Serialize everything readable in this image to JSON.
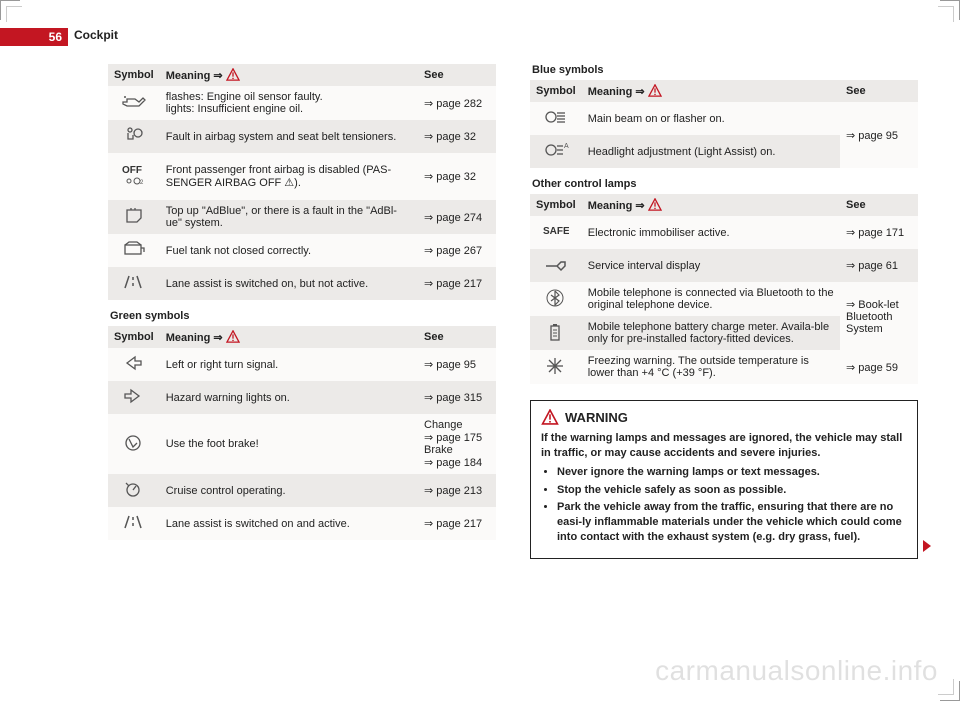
{
  "page_number": "56",
  "section": "Cockpit",
  "watermark": "carmanualsonline.info",
  "col_header_symbol": "Symbol",
  "col_header_meaning": "Meaning ⇒",
  "col_header_see": "See",
  "warn_tri_color": "#c31622",
  "tables": {
    "top_left": [
      {
        "icon": "oil-can",
        "text": "flashes: Engine oil sensor faulty.\nlights: Insufficient engine oil.",
        "see": "⇒ page 282",
        "shade": "light"
      },
      {
        "icon": "airbag-person",
        "text": "Fault in airbag system and seat belt tensioners.",
        "see": "⇒ page 32",
        "shade": "dark"
      },
      {
        "icon": "off-airbag",
        "text": "Front passenger front airbag is disabled (PAS-SENGER AIRBAG OFF ⚠).",
        "see": "⇒ page 32",
        "shade": "light"
      },
      {
        "icon": "adblue",
        "text": "Top up \"AdBlue\", or there is a fault in the \"AdBl-ue\" system.",
        "see": "⇒ page 274",
        "shade": "dark"
      },
      {
        "icon": "fuel-cap",
        "text": "Fuel tank not closed correctly.",
        "see": "⇒ page 267",
        "shade": "light"
      },
      {
        "icon": "lane-lines",
        "text": "Lane assist is switched on, but not active.",
        "see": "⇒ page 217",
        "shade": "dark"
      }
    ],
    "green_title": "Green symbols",
    "green": [
      {
        "icon": "arrow-left",
        "text": "Left or right turn signal.",
        "see": "⇒ page 95",
        "shade": "light"
      },
      {
        "icon": "arrow-right",
        "text": "Hazard warning lights on.",
        "see": "⇒ page 315",
        "shade": "dark"
      },
      {
        "icon": "foot-brake",
        "text": "Use the foot brake!",
        "see": "Change\n⇒ page 175\nBrake\n⇒ page 184",
        "shade": "light"
      },
      {
        "icon": "cruise",
        "text": "Cruise control operating.",
        "see": "⇒ page 213",
        "shade": "dark"
      },
      {
        "icon": "lane-lines",
        "text": "Lane assist is switched on and active.",
        "see": "⇒ page 217",
        "shade": "light"
      }
    ],
    "blue_title": "Blue symbols",
    "blue": [
      {
        "icon": "main-beam",
        "text": "Main beam on or flasher on.",
        "see_rowspan": "⇒ page 95",
        "shade": "light"
      },
      {
        "icon": "light-assist",
        "text": "Headlight adjustment (Light Assist) on.",
        "shade": "dark"
      }
    ],
    "other_title": "Other control lamps",
    "other": [
      {
        "icon": "safe-text",
        "text": "Electronic immobiliser active.",
        "see": "⇒ page 171",
        "shade": "light"
      },
      {
        "icon": "wrench",
        "text": "Service interval display",
        "see": "⇒ page 61",
        "shade": "dark"
      },
      {
        "icon": "bluetooth",
        "text": "Mobile telephone is connected via Bluetooth to the original telephone device.",
        "see_rowspan": "⇒ Book-let Bluetooth System",
        "shade": "light"
      },
      {
        "icon": "battery",
        "text": "Mobile telephone battery charge meter. Availa-ble only for pre-installed factory-fitted devices.",
        "shade": "dark"
      },
      {
        "icon": "snowflake",
        "text": "Freezing warning. The outside temperature is lower than +4 °C (+39 °F).",
        "see": "⇒ page 59",
        "shade": "light"
      }
    ]
  },
  "warning": {
    "heading": "WARNING",
    "intro": "If the warning lamps and messages are ignored, the vehicle may stall in traffic, or may cause accidents and severe injuries.",
    "bullets": [
      "Never ignore the warning lamps or text messages.",
      "Stop the vehicle safely as soon as possible.",
      "Park the vehicle away from the traffic, ensuring that there are no easi-ly inflammable materials under the vehicle which could come into contact with the exhaust system (e.g. dry grass, fuel)."
    ]
  }
}
